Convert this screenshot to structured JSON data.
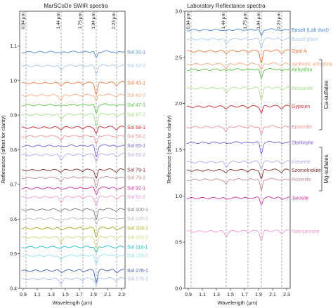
{
  "chart_data": [
    {
      "type": "line",
      "title": "MarSCoDe SWIR spectra",
      "xlabel": "Wavelength (μm)",
      "ylabel": "Reflectance (offset for clarity)",
      "xlim": [
        0.85,
        2.35
      ],
      "ylim": [
        0.4,
        1.2
      ],
      "x_ticks": [
        "0.9",
        "1.1",
        "1.3",
        "1.5",
        "1.7",
        "1.9",
        "2.1",
        "2.3"
      ],
      "y_ticks": [
        "0.4",
        "0.5",
        "0.6",
        "0.7",
        "0.8",
        "0.9",
        "1.0",
        "1.1"
      ],
      "band_lines": [
        "0.94 μm",
        "1.44 μm",
        "1.75 μm",
        "1.94 μm",
        "2.23 μm"
      ],
      "series": [
        {
          "name": "Sol 32-1",
          "color": "#4a86c8",
          "level": 1.083
        },
        {
          "name": "Sol 32-2",
          "color": "#a9c8ea",
          "level": 1.043
        },
        {
          "name": "Sol 43-1",
          "color": "#e8763a",
          "level": 0.993
        },
        {
          "name": "Sol 43-2",
          "color": "#f3a87a",
          "level": 0.958
        },
        {
          "name": "Sol 47-1",
          "color": "#58c247",
          "level": 0.93
        },
        {
          "name": "Sol 47-2",
          "color": "#a6e08c",
          "level": 0.902
        },
        {
          "name": "Sol 58-1",
          "color": "#c9242c",
          "level": 0.865
        },
        {
          "name": "Sol 58-2",
          "color": "#ec8f98",
          "level": 0.84
        },
        {
          "name": "Sol 65-1",
          "color": "#7b5cd3",
          "level": 0.812
        },
        {
          "name": "Sol 65-2",
          "color": "#b9a6ea",
          "level": 0.786
        },
        {
          "name": "Sol 79-1",
          "color": "#7a2a2a",
          "level": 0.742
        },
        {
          "name": "Sol 79-2",
          "color": "#c08a8a",
          "level": 0.72
        },
        {
          "name": "Sol 92-1",
          "color": "#cc2e9c",
          "level": 0.69
        },
        {
          "name": "Sol 92-2",
          "color": "#ec97d0",
          "level": 0.664
        },
        {
          "name": "Sol 100-1",
          "color": "#777777",
          "level": 0.628
        },
        {
          "name": "Sol 100-2",
          "color": "#bbbbbb",
          "level": 0.602
        },
        {
          "name": "Sol 103-1",
          "color": "#a6a61e",
          "level": 0.574
        },
        {
          "name": "Sol 103-2",
          "color": "#d5d57e",
          "level": 0.548
        },
        {
          "name": "Sol 118-1",
          "color": "#18bfc9",
          "level": 0.52
        },
        {
          "name": "Sol 118-2",
          "color": "#92e2e8",
          "level": 0.495
        },
        {
          "name": "Sol 276-1",
          "color": "#3a5dae",
          "level": 0.452
        },
        {
          "name": "Sol 276-2",
          "color": "#a8bce8",
          "level": 0.428
        }
      ]
    },
    {
      "type": "line",
      "title": "Laboratory Reflectance spectra",
      "xlabel": "Wavelength (μm)",
      "ylabel": "Reflectance (offset for clarity)",
      "xlim": [
        0.85,
        2.35
      ],
      "ylim": [
        0.0,
        3.0
      ],
      "x_ticks": [
        "0.9",
        "1.1",
        "1.3",
        "1.5",
        "1.7",
        "1.9",
        "2.1",
        "2.3"
      ],
      "y_ticks": [
        "0.0",
        "0.5",
        "1.0",
        "1.5",
        "2.0",
        "2.5",
        "3.0"
      ],
      "band_lines": [
        "0.94 μm",
        "1.44 μm",
        "1.75 μm",
        "1.94 μm",
        "2.23 μm"
      ],
      "groups": [
        "Ca-sulfates",
        "Mg-sulfates"
      ],
      "series": [
        {
          "name": "Basalt (Lab dust)",
          "color": "#4a86c8",
          "level": 2.8
        },
        {
          "name": "Basalt glass",
          "color": "#a9c8ea",
          "level": 2.7
        },
        {
          "name": "Opal-A",
          "color": "#e8763a",
          "level": 2.57
        },
        {
          "name": "synthetic anhydrite",
          "color": "#f3a87a",
          "level": 2.43
        },
        {
          "name": "Anhydrite",
          "color": "#58c247",
          "level": 2.37
        },
        {
          "name": "Bassanite",
          "color": "#a6e08c",
          "level": 2.17
        },
        {
          "name": "Gypsum",
          "color": "#c9242c",
          "level": 1.97
        },
        {
          "name": "Epsomite",
          "color": "#ec8f98",
          "level": 1.75
        },
        {
          "name": "Starkeyite",
          "color": "#7b5cd3",
          "level": 1.58
        },
        {
          "name": "Kieserite",
          "color": "#b9a6ea",
          "level": 1.37
        },
        {
          "name": "Szomolnokite",
          "color": "#7a2a2a",
          "level": 1.28
        },
        {
          "name": "Rozenite",
          "color": "#c08a8a",
          "level": 1.18
        },
        {
          "name": "Jarosite",
          "color": "#cc2e9c",
          "level": 0.98
        },
        {
          "name": "Natrojarosite",
          "color": "#ec97d0",
          "level": 0.62
        }
      ]
    }
  ]
}
